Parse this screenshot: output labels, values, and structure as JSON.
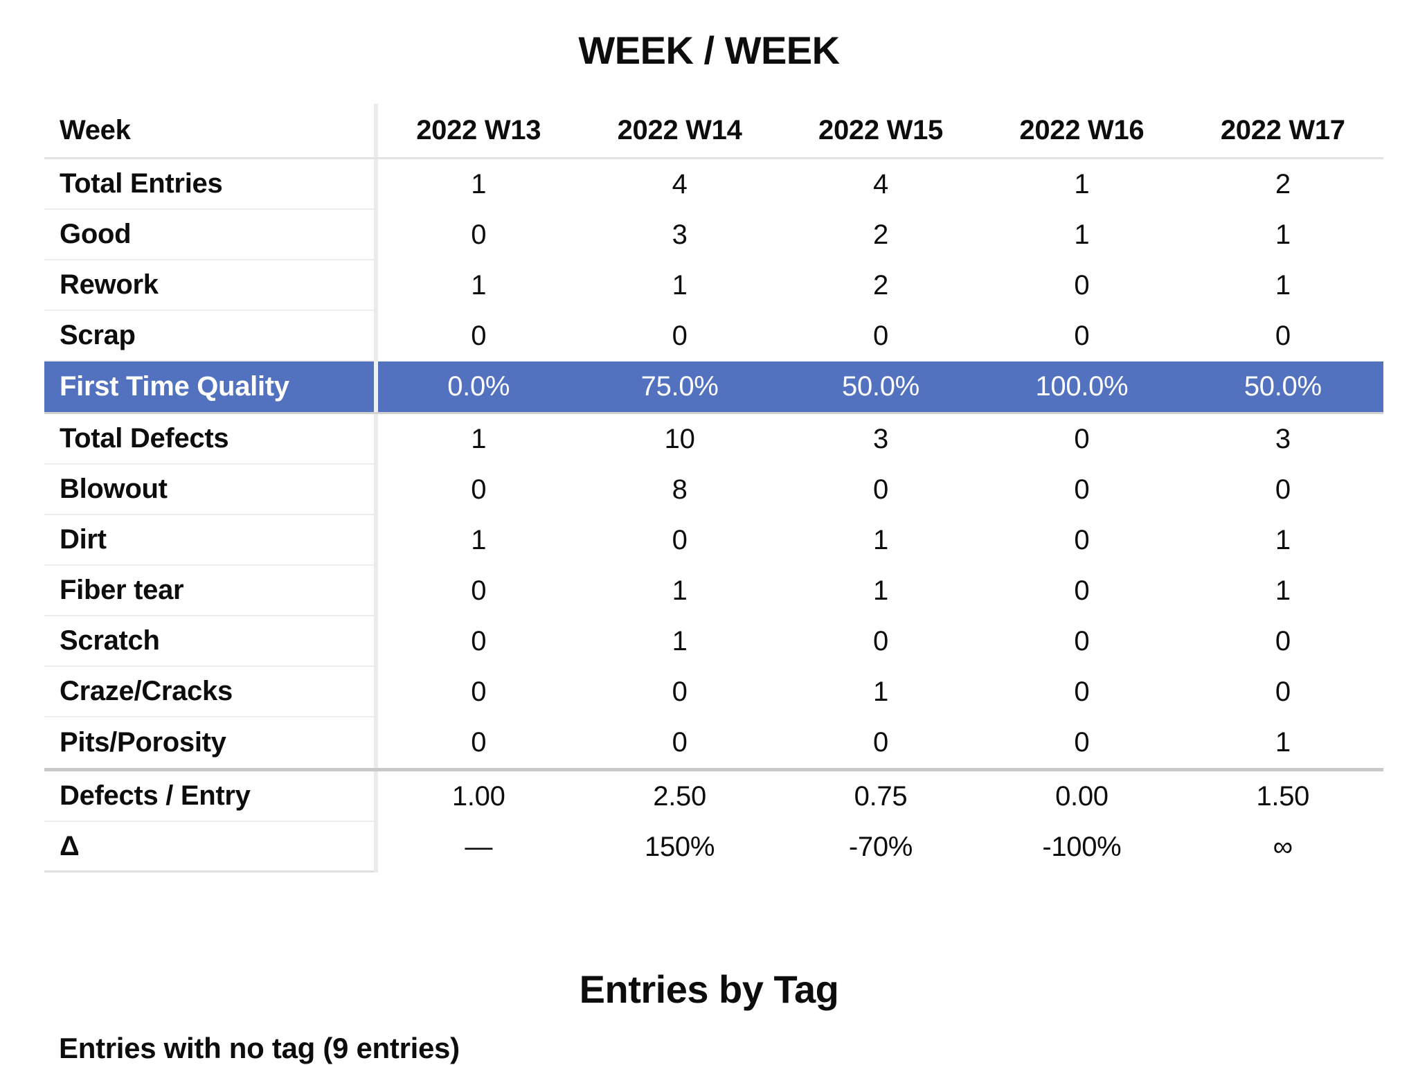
{
  "page": {
    "title": "WEEK / WEEK",
    "section_title": "Entries by Tag",
    "footer_note": "Entries with no tag (9 entries)"
  },
  "colors": {
    "highlight_row_bg": "#5271bf",
    "highlight_row_text": "#ffffff",
    "separator_light": "#ededed",
    "separator_thick": "#c9c9c9"
  },
  "table": {
    "header": {
      "label": "Week",
      "columns": [
        "2022 W13",
        "2022 W14",
        "2022 W15",
        "2022 W16",
        "2022 W17"
      ]
    },
    "rows": [
      {
        "label": "Total Entries",
        "values": [
          "1",
          "4",
          "4",
          "1",
          "2"
        ]
      },
      {
        "label": "Good",
        "values": [
          "0",
          "3",
          "2",
          "1",
          "1"
        ]
      },
      {
        "label": "Rework",
        "values": [
          "1",
          "1",
          "2",
          "0",
          "1"
        ]
      },
      {
        "label": "Scrap",
        "values": [
          "0",
          "0",
          "0",
          "0",
          "0"
        ]
      },
      {
        "label": "First Time Quality",
        "values": [
          "0.0%",
          "75.0%",
          "50.0%",
          "100.0%",
          "50.0%"
        ],
        "highlight": true
      },
      {
        "label": "Total Defects",
        "values": [
          "1",
          "10",
          "3",
          "0",
          "3"
        ]
      },
      {
        "label": "Blowout",
        "values": [
          "0",
          "8",
          "0",
          "0",
          "0"
        ]
      },
      {
        "label": "Dirt",
        "values": [
          "1",
          "0",
          "1",
          "0",
          "1"
        ]
      },
      {
        "label": "Fiber tear",
        "values": [
          "0",
          "1",
          "1",
          "0",
          "1"
        ]
      },
      {
        "label": "Scratch",
        "values": [
          "0",
          "1",
          "0",
          "0",
          "0"
        ]
      },
      {
        "label": "Craze/Cracks",
        "values": [
          "0",
          "0",
          "1",
          "0",
          "0"
        ]
      },
      {
        "label": "Pits/Porosity",
        "values": [
          "0",
          "0",
          "0",
          "0",
          "1"
        ]
      },
      {
        "label": "Defects / Entry",
        "values": [
          "1.00",
          "2.50",
          "0.75",
          "0.00",
          "1.50"
        ]
      },
      {
        "label": "Δ",
        "values": [
          "—",
          "150%",
          "-70%",
          "-100%",
          "∞"
        ]
      }
    ]
  }
}
